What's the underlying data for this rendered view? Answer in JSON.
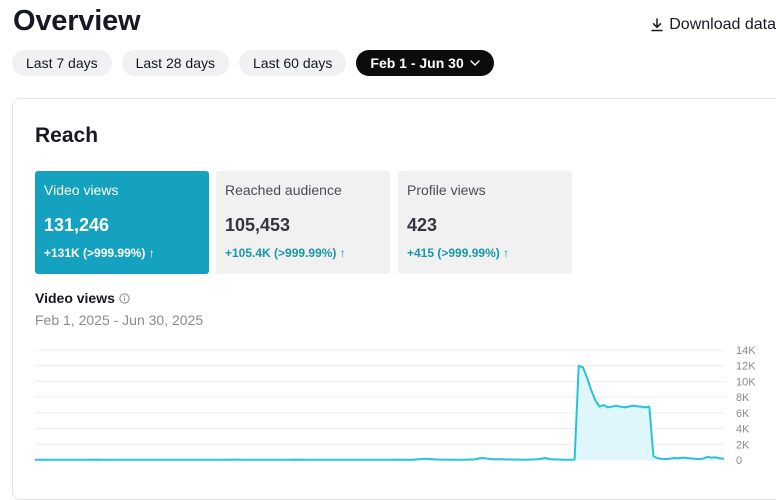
{
  "header": {
    "title": "Overview",
    "download_label": "Download data"
  },
  "date_range": {
    "options": [
      "Last 7 days",
      "Last 28 days",
      "Last 60 days"
    ],
    "active_label": "Feb 1 - Jun 30"
  },
  "reach": {
    "title": "Reach",
    "metrics": [
      {
        "label": "Video views",
        "value": "131,246",
        "change": "+131K (>999.99%) ↑"
      },
      {
        "label": "Reached audience",
        "value": "105,453",
        "change": "+105.4K (>999.99%) ↑"
      },
      {
        "label": "Profile views",
        "value": "423",
        "change": "+415 (>999.99%) ↑"
      }
    ]
  },
  "colors": {
    "accent": "#15a1c0",
    "change_text": "#1698a8",
    "line": "#27c4d9",
    "area_fill": "#dff6fb"
  },
  "chart_data": {
    "type": "area",
    "title": "Video views",
    "subtitle": "Feb 1, 2025 - Jun 30, 2025",
    "x_range": [
      "Feb 1",
      "Jun 30"
    ],
    "y_ticks": [
      "14K",
      "12K",
      "10K",
      "8K",
      "6K",
      "4K",
      "2K",
      "0"
    ],
    "ylim": [
      0,
      14000
    ],
    "grid": true,
    "series": [
      {
        "values": [
          20,
          25,
          30,
          22,
          28,
          35,
          40,
          30,
          25,
          30,
          35,
          28,
          22,
          30,
          40,
          45,
          38,
          30,
          28,
          35,
          40,
          30,
          25,
          22,
          30,
          35,
          40,
          30,
          28,
          25,
          30,
          35,
          28,
          30,
          40,
          35,
          30,
          25,
          28,
          30,
          35,
          40,
          30,
          28,
          25,
          30,
          35,
          40,
          45,
          50,
          40,
          35,
          30,
          28,
          25,
          30,
          35,
          40,
          30,
          25,
          30,
          35,
          40,
          45,
          40,
          35,
          30,
          28,
          30,
          35,
          40,
          35,
          30,
          28,
          25,
          30,
          35,
          40,
          30,
          28,
          30,
          35,
          40,
          30,
          25,
          30,
          35,
          40,
          45,
          40,
          35,
          30,
          80,
          120,
          150,
          130,
          90,
          60,
          50,
          45,
          40,
          35,
          30,
          40,
          50,
          60,
          80,
          200,
          250,
          180,
          120,
          100,
          90,
          80,
          70,
          60,
          50,
          45,
          40,
          50,
          60,
          100,
          180,
          250,
          120,
          80,
          60,
          50,
          40,
          30,
          50,
          12000,
          11800,
          10500,
          8900,
          7600,
          6800,
          7000,
          6700,
          6800,
          6900,
          6800,
          6700,
          6800,
          6900,
          6850,
          6800,
          6700,
          6800,
          500,
          220,
          150,
          120,
          180,
          250,
          200,
          300,
          250,
          200,
          150,
          120,
          180,
          400,
          300,
          350,
          200,
          150
        ]
      }
    ]
  }
}
